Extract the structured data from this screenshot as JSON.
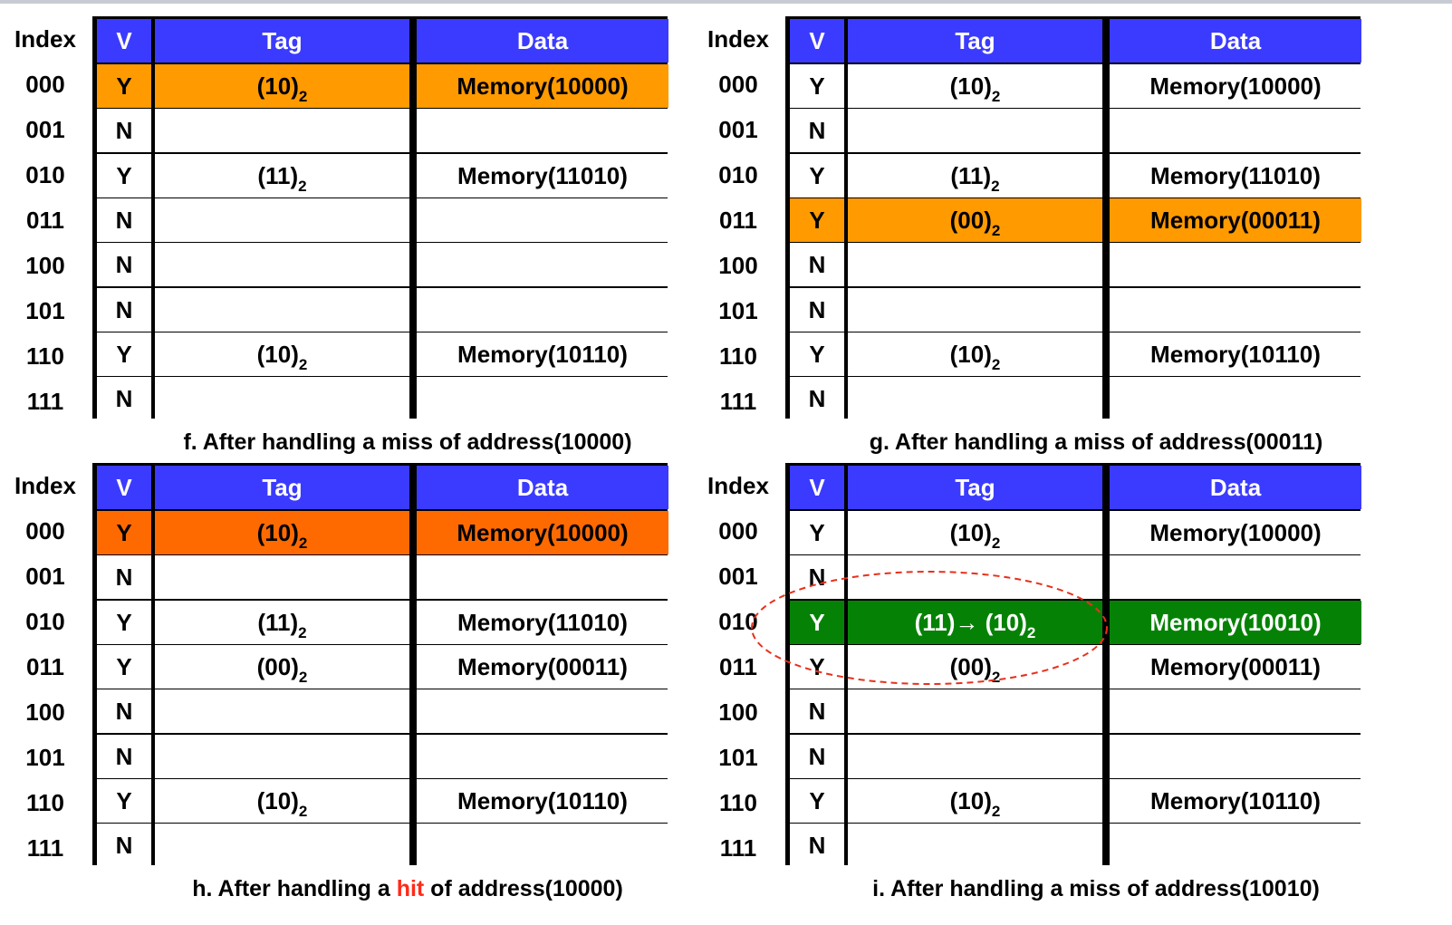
{
  "columns": {
    "index": "Index",
    "v": "V",
    "tag": "Tag",
    "data": "Data"
  },
  "indices": [
    "000",
    "001",
    "010",
    "011",
    "100",
    "101",
    "110",
    "111"
  ],
  "tables": [
    {
      "id": "f",
      "caption": "f. After handling a miss of address(10000)",
      "rows": [
        {
          "v": "Y",
          "tag": "(10)",
          "sub": "2",
          "data": "Memory(10000)",
          "hl": "orange"
        },
        {
          "v": "N",
          "tag": "",
          "sub": "",
          "data": "",
          "hl": ""
        },
        {
          "v": "Y",
          "tag": "(11)",
          "sub": "2",
          "data": "Memory(11010)",
          "hl": ""
        },
        {
          "v": "N",
          "tag": "",
          "sub": "",
          "data": "",
          "hl": ""
        },
        {
          "v": "N",
          "tag": "",
          "sub": "",
          "data": "",
          "hl": ""
        },
        {
          "v": "N",
          "tag": "",
          "sub": "",
          "data": "",
          "hl": ""
        },
        {
          "v": "Y",
          "tag": "(10)",
          "sub": "2",
          "data": "Memory(10110)",
          "hl": ""
        },
        {
          "v": "N",
          "tag": "",
          "sub": "",
          "data": "",
          "hl": ""
        }
      ]
    },
    {
      "id": "g",
      "caption": "g. After handling a miss of address(00011)",
      "rows": [
        {
          "v": "Y",
          "tag": "(10)",
          "sub": "2",
          "data": "Memory(10000)",
          "hl": ""
        },
        {
          "v": "N",
          "tag": "",
          "sub": "",
          "data": "",
          "hl": ""
        },
        {
          "v": "Y",
          "tag": "(11)",
          "sub": "2",
          "data": "Memory(11010)",
          "hl": ""
        },
        {
          "v": "Y",
          "tag": "(00)",
          "sub": "2",
          "data": "Memory(00011)",
          "hl": "orange"
        },
        {
          "v": "N",
          "tag": "",
          "sub": "",
          "data": "",
          "hl": ""
        },
        {
          "v": "N",
          "tag": "",
          "sub": "",
          "data": "",
          "hl": ""
        },
        {
          "v": "Y",
          "tag": "(10)",
          "sub": "2",
          "data": "Memory(10110)",
          "hl": ""
        },
        {
          "v": "N",
          "tag": "",
          "sub": "",
          "data": "",
          "hl": ""
        }
      ]
    },
    {
      "id": "h",
      "caption_before": "h. After handling a ",
      "caption_hit": "hit",
      "caption_after": " of address(10000)",
      "rows": [
        {
          "v": "Y",
          "tag": "(10)",
          "sub": "2",
          "data": "Memory(10000)",
          "hl": "dark"
        },
        {
          "v": "N",
          "tag": "",
          "sub": "",
          "data": "",
          "hl": ""
        },
        {
          "v": "Y",
          "tag": "(11)",
          "sub": "2",
          "data": "Memory(11010)",
          "hl": ""
        },
        {
          "v": "Y",
          "tag": "(00)",
          "sub": "2",
          "data": "Memory(00011)",
          "hl": ""
        },
        {
          "v": "N",
          "tag": "",
          "sub": "",
          "data": "",
          "hl": ""
        },
        {
          "v": "N",
          "tag": "",
          "sub": "",
          "data": "",
          "hl": ""
        },
        {
          "v": "Y",
          "tag": "(10)",
          "sub": "2",
          "data": "Memory(10110)",
          "hl": ""
        },
        {
          "v": "N",
          "tag": "",
          "sub": "",
          "data": "",
          "hl": ""
        }
      ]
    },
    {
      "id": "i",
      "caption": "i. After handling a miss of address(10010)",
      "rows": [
        {
          "v": "Y",
          "tag": "(10)",
          "sub": "2",
          "data": "Memory(10000)",
          "hl": ""
        },
        {
          "v": "N",
          "tag": "",
          "sub": "",
          "data": "",
          "hl": ""
        },
        {
          "v": "Y",
          "tag": "(11)→ (10)",
          "sub": "2",
          "data": "Memory(10010)",
          "hl": "green"
        },
        {
          "v": "Y",
          "tag": "(00)",
          "sub": "2",
          "data": "Memory(00011)",
          "hl": ""
        },
        {
          "v": "N",
          "tag": "",
          "sub": "",
          "data": "",
          "hl": ""
        },
        {
          "v": "N",
          "tag": "",
          "sub": "",
          "data": "",
          "hl": ""
        },
        {
          "v": "Y",
          "tag": "(10)",
          "sub": "2",
          "data": "Memory(10110)",
          "hl": ""
        },
        {
          "v": "N",
          "tag": "",
          "sub": "",
          "data": "",
          "hl": ""
        }
      ]
    }
  ],
  "colors": {
    "header": "#3b3bff",
    "highlight_orange": "#ff9a00",
    "highlight_dark_orange": "#ff6a00",
    "highlight_green": "#058205",
    "hit_word": "#ff2a1a",
    "annotation": "#e8301c"
  }
}
